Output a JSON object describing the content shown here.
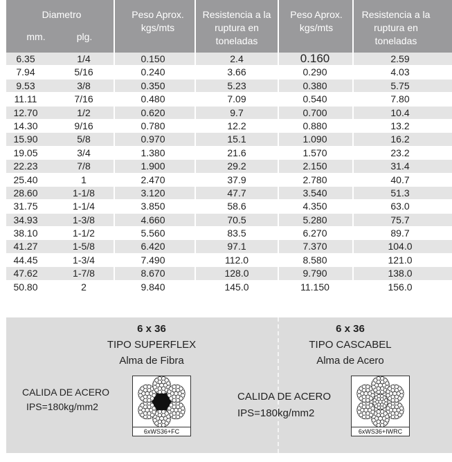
{
  "header": {
    "diametro": "Diametro",
    "mm": "mm.",
    "plg": "plg.",
    "peso1": "Peso Aprox. kgs/mts",
    "res1": "Resistencia a la ruptura en toneladas",
    "peso2": "Peso Aprox. kgs/mts",
    "res2": "Resistencia a la ruptura en toneladas"
  },
  "rows": [
    [
      "6.35",
      "1/4",
      "0.150",
      "2.4",
      "0.160",
      "2.59"
    ],
    [
      "7.94",
      "5/16",
      "0.240",
      "3.66",
      "0.290",
      "4.03"
    ],
    [
      "9.53",
      "3/8",
      "0.350",
      "5.23",
      "0.380",
      "5.75"
    ],
    [
      "11.11",
      "7/16",
      "0.480",
      "7.09",
      "0.540",
      "7.80"
    ],
    [
      "12.70",
      "1/2",
      "0.620",
      "9.7",
      "0.700",
      "10.4"
    ],
    [
      "14.30",
      "9/16",
      "0.780",
      "12.2",
      "0.880",
      "13.2"
    ],
    [
      "15.90",
      "5/8",
      "0.970",
      "15.1",
      "1.090",
      "16.2"
    ],
    [
      "19.05",
      "3/4",
      "1.380",
      "21.6",
      "1.570",
      "23.2"
    ],
    [
      "22.23",
      "7/8",
      "1.900",
      "29.2",
      "2.150",
      "31.4"
    ],
    [
      "25.40",
      "1",
      "2.470",
      "37.9",
      "2.780",
      "40.7"
    ],
    [
      "28.60",
      "1-1/8",
      "3.120",
      "47.7",
      "3.540",
      "51.3"
    ],
    [
      "31.75",
      "1-1/4",
      "3.850",
      "58.6",
      "4.350",
      "63.0"
    ],
    [
      "34.93",
      "1-3/8",
      "4.660",
      "70.5",
      "5.280",
      "75.7"
    ],
    [
      "38.10",
      "1-1/2",
      "5.560",
      "83.5",
      "6.270",
      "89.7"
    ],
    [
      "41.27",
      "1-5/8",
      "6.420",
      "97.1",
      "7.370",
      "104.0"
    ],
    [
      "44.45",
      "1-3/4",
      "7.490",
      "112.0",
      "8.580",
      "121.0"
    ],
    [
      "47.62",
      "1-7/8",
      "8.670",
      "128.0",
      "9.790",
      "138.0"
    ],
    [
      "50.80",
      "2",
      "9.840",
      "145.0",
      "11.150",
      "156.0"
    ]
  ],
  "left_panel": {
    "construction": "6 x 36",
    "tipo": "TIPO SUPERFLEX",
    "alma": "Alma de Fibra",
    "calida": "CALIDA DE ACERO",
    "ips": "IPS=180kg/mm2",
    "rope_code": "6xWS36+FC"
  },
  "right_panel": {
    "construction": "6 x 36",
    "tipo": "TIPO CASCABEL",
    "alma": "Alma de Acero",
    "calida": "CALIDA DE ACERO",
    "ips": "IPS=180kg/mm2",
    "rope_code": "6xWS36+IWRC"
  },
  "colors": {
    "header_bg": "#9a9a9c",
    "row_alt": "#e4e4e4",
    "panel_bg": "#dcdcdc"
  }
}
